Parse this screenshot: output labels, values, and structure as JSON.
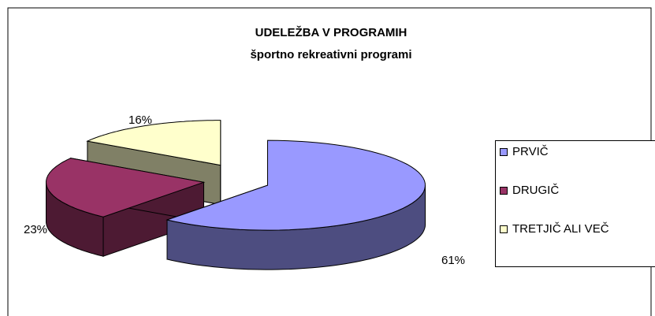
{
  "chart_data": {
    "type": "pie",
    "title": "UDELEŽBA V PROGRAMIH",
    "subtitle": "športno rekreativni programi",
    "categories": [
      "PRVIČ",
      "DRUGIČ",
      "TRETJIČ ALI VEČ"
    ],
    "values": [
      61,
      23,
      16
    ],
    "value_labels": [
      "61%",
      "23%",
      "16%"
    ],
    "colors": [
      "#9999ff",
      "#993366",
      "#ffffcc"
    ],
    "legend": "right"
  }
}
